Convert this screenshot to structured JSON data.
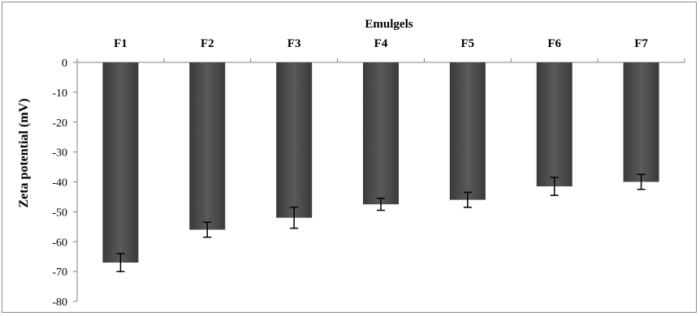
{
  "chart_data": {
    "type": "bar",
    "title": "Emulgels",
    "xlabel": "",
    "ylabel": "Zeta potential (mV)",
    "categories": [
      "F1",
      "F2",
      "F3",
      "F4",
      "F5",
      "F6",
      "F7"
    ],
    "series": [
      {
        "values": [
          -67,
          -56,
          -52,
          -47.5,
          -46,
          -41.5,
          -40
        ],
        "error": [
          3,
          2.5,
          3.5,
          2,
          2.5,
          3,
          2.5
        ]
      }
    ],
    "ylim": [
      -80,
      0
    ],
    "yticks": [
      0,
      -10,
      -20,
      -30,
      -40,
      -50,
      -60,
      -70,
      -80
    ],
    "ytick_labels": [
      "0",
      "-10",
      "-20",
      "-30",
      "-40",
      "-50",
      "-60",
      "-70",
      "-80"
    ],
    "x_axis_position": "top",
    "grid": false,
    "legend": "none",
    "bar_color": "#4a4a4a"
  }
}
